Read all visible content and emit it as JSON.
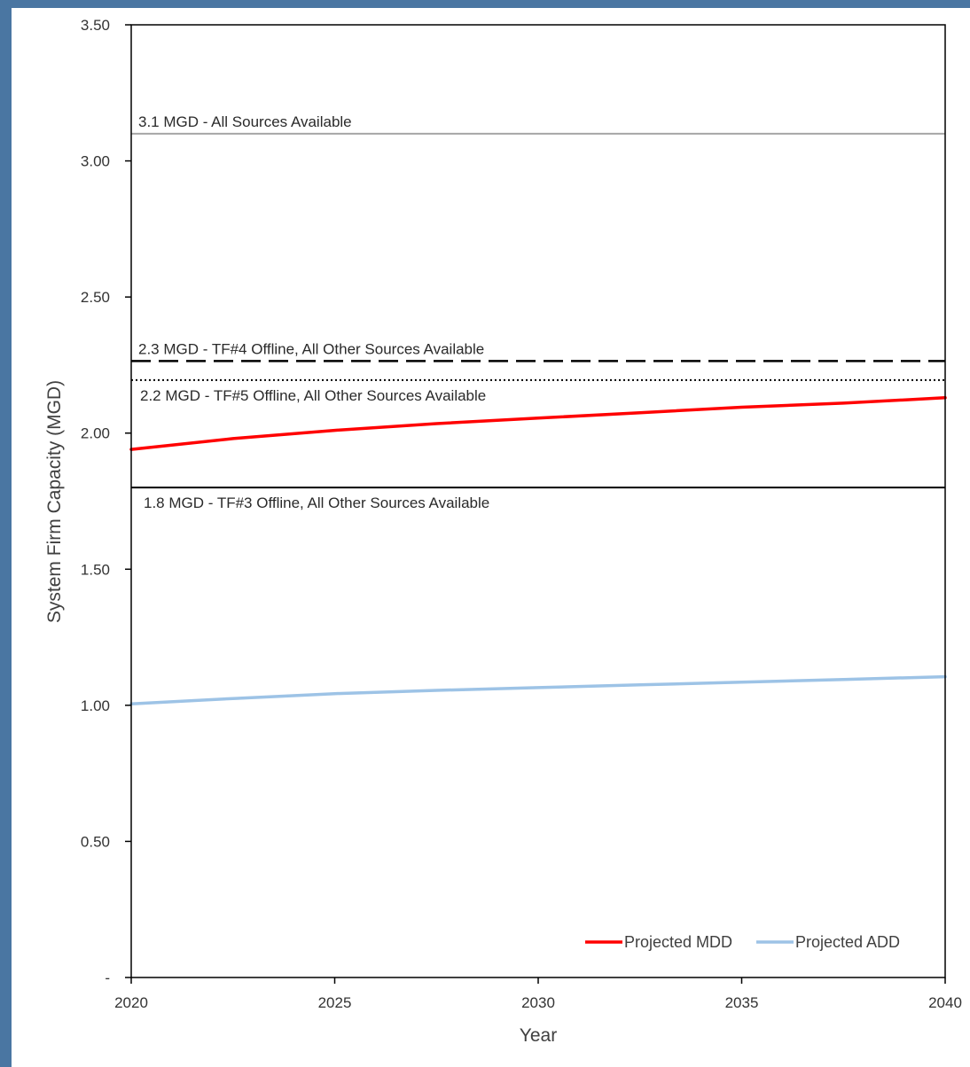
{
  "chart_data": {
    "type": "line",
    "title": "",
    "xlabel": "Year",
    "ylabel": "System Firm Capacity (MGD)",
    "xlim": [
      2020,
      2040
    ],
    "ylim": [
      0,
      3.5
    ],
    "x_ticks": [
      "2020",
      "2025",
      "2030",
      "2035",
      "2040"
    ],
    "y_ticks": [
      {
        "value": 0,
        "label": "-"
      },
      {
        "value": 0.5,
        "label": "0.50"
      },
      {
        "value": 1.0,
        "label": "1.00"
      },
      {
        "value": 1.5,
        "label": "1.50"
      },
      {
        "value": 2.0,
        "label": "2.00"
      },
      {
        "value": 2.5,
        "label": "2.50"
      },
      {
        "value": 3.0,
        "label": "3.00"
      },
      {
        "value": 3.5,
        "label": "3.50"
      }
    ],
    "grid": false,
    "legend_position": "bottom-right",
    "series": [
      {
        "name": "Projected MDD",
        "color": "#ff0000",
        "x": [
          2020,
          2022.5,
          2025,
          2027.5,
          2030,
          2032.5,
          2035,
          2037.5,
          2040
        ],
        "y": [
          1.94,
          1.98,
          2.01,
          2.035,
          2.055,
          2.075,
          2.095,
          2.11,
          2.13
        ]
      },
      {
        "name": "Projected ADD",
        "color": "#9dc3e6",
        "x": [
          2020,
          2022.5,
          2025,
          2027.5,
          2030,
          2032.5,
          2035,
          2037.5,
          2040
        ],
        "y": [
          1.005,
          1.025,
          1.043,
          1.055,
          1.065,
          1.075,
          1.085,
          1.095,
          1.105
        ]
      }
    ],
    "reference_lines": [
      {
        "value": 3.1,
        "label": "3.1 MGD - All Sources Available",
        "color": "#a6a6a6",
        "style": "solid",
        "label_side": "above"
      },
      {
        "value": 2.265,
        "label": "2.3 MGD - TF#4 Offline, All Other Sources Available",
        "color": "#000000",
        "style": "dashed",
        "label_side": "above"
      },
      {
        "value": 2.195,
        "label": "2.2 MGD - TF#5 Offline, All Other Sources Available",
        "color": "#000000",
        "style": "dotted",
        "label_side": "below"
      },
      {
        "value": 1.8,
        "label": "1.8 MGD - TF#3 Offline, All Other Sources Available",
        "color": "#000000",
        "style": "solid",
        "label_side": "below"
      }
    ]
  }
}
